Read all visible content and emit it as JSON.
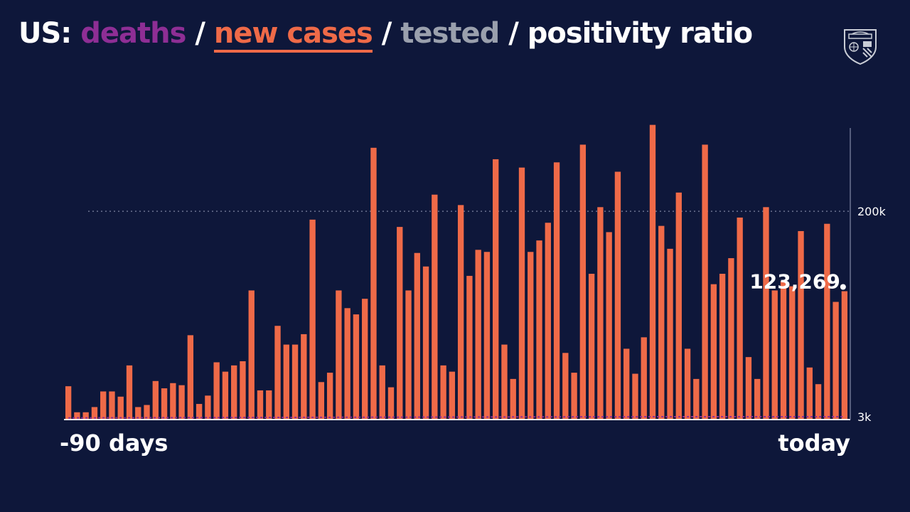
{
  "title": {
    "prefix": "US:",
    "deaths": "deaths",
    "sep1": "/",
    "new_cases": "new cases",
    "sep2": "/",
    "tested": "tested",
    "sep3": "/",
    "positivity": "positivity ratio"
  },
  "colors": {
    "background": "#0e173a",
    "cases": "#ef6a48",
    "deaths": "#8e2e95",
    "tested": "#9aa0ad",
    "text": "#ffffff"
  },
  "logo_icon": "university-shield-icon",
  "chart_data": {
    "type": "bar",
    "title": "",
    "series": [
      {
        "name": "new cases",
        "values": [
          32000,
          7000,
          7000,
          12000,
          27000,
          27000,
          22000,
          52000,
          12000,
          14000,
          37000,
          30000,
          35000,
          33000,
          81000,
          15000,
          23000,
          55000,
          46000,
          52000,
          56000,
          124000,
          28000,
          28000,
          90000,
          72000,
          72000,
          82000,
          192000,
          36000,
          45000,
          124000,
          107000,
          101000,
          116000,
          261000,
          52000,
          31000,
          185000,
          124000,
          160000,
          147000,
          216000,
          52000,
          46000,
          206000,
          138000,
          163000,
          161000,
          250000,
          72000,
          39000,
          242000,
          161000,
          172000,
          189000,
          247000,
          64000,
          45000,
          264000,
          140000,
          204000,
          180000,
          238000,
          68000,
          44000,
          79000,
          283000,
          186000,
          164000,
          218000,
          68000,
          39000,
          264000,
          130000,
          140000,
          155000,
          194000,
          60000,
          39000,
          204000,
          124000,
          133000,
          128000,
          181000,
          50000,
          34000,
          188000,
          113000,
          123269
        ]
      },
      {
        "name": "deaths",
        "values": [
          500,
          600,
          700,
          700,
          800,
          800,
          900,
          900,
          900,
          1000,
          1000,
          1100,
          1100,
          1200,
          1200,
          1200,
          1300,
          1300,
          1400,
          1400,
          1500,
          1500,
          1500,
          1600,
          1600,
          1700,
          1700,
          1800,
          1800,
          1900,
          1900,
          2000,
          2000,
          2100,
          2100,
          2200,
          2200,
          2200,
          2300,
          2300,
          2400,
          2400,
          2400,
          2500,
          2500,
          2600,
          2600,
          2600,
          2700,
          2700,
          2700,
          2800,
          2800,
          2800,
          2900,
          2900,
          2900,
          3000,
          3000,
          3000,
          3000,
          3100,
          3100,
          3100,
          3100,
          3100,
          3200,
          3200,
          3200,
          3200,
          3200,
          3200,
          3300,
          3300,
          3300,
          3300,
          3300,
          3300,
          3300,
          3300,
          3300,
          3300,
          3300,
          3300,
          3300,
          3300,
          3300,
          3300,
          3300,
          3300
        ]
      }
    ],
    "x_labels": {
      "start": "-90 days",
      "end": "today"
    },
    "y_ticks": [
      {
        "value": 200000,
        "label": "200k"
      },
      {
        "value": 3000,
        "label": "3k"
      }
    ],
    "last_value_label": "123,269",
    "ylim": [
      0,
      280000
    ],
    "grid": "dotted line at 200k",
    "axis": "right"
  }
}
